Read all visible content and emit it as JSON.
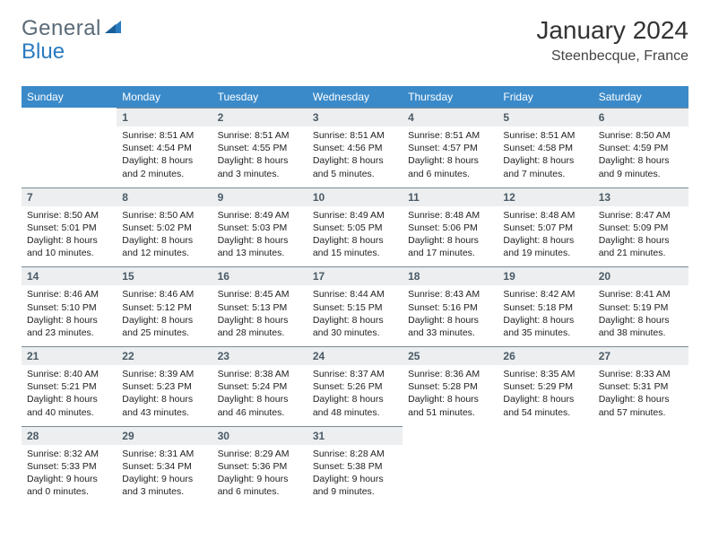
{
  "brand": {
    "part1": "General",
    "part2": "Blue"
  },
  "title": "January 2024",
  "location": "Steenbecque, France",
  "colors": {
    "header_bg": "#3a8ac9",
    "daynum_bg": "#eceeef",
    "daynum_border": "#7a8a96",
    "brand_gray": "#5a6a77",
    "brand_blue": "#2b7bbf"
  },
  "day_headers": [
    "Sunday",
    "Monday",
    "Tuesday",
    "Wednesday",
    "Thursday",
    "Friday",
    "Saturday"
  ],
  "weeks": [
    [
      null,
      {
        "n": "1",
        "sr": "8:51 AM",
        "ss": "4:54 PM",
        "dl": "8 hours and 2 minutes."
      },
      {
        "n": "2",
        "sr": "8:51 AM",
        "ss": "4:55 PM",
        "dl": "8 hours and 3 minutes."
      },
      {
        "n": "3",
        "sr": "8:51 AM",
        "ss": "4:56 PM",
        "dl": "8 hours and 5 minutes."
      },
      {
        "n": "4",
        "sr": "8:51 AM",
        "ss": "4:57 PM",
        "dl": "8 hours and 6 minutes."
      },
      {
        "n": "5",
        "sr": "8:51 AM",
        "ss": "4:58 PM",
        "dl": "8 hours and 7 minutes."
      },
      {
        "n": "6",
        "sr": "8:50 AM",
        "ss": "4:59 PM",
        "dl": "8 hours and 9 minutes."
      }
    ],
    [
      {
        "n": "7",
        "sr": "8:50 AM",
        "ss": "5:01 PM",
        "dl": "8 hours and 10 minutes."
      },
      {
        "n": "8",
        "sr": "8:50 AM",
        "ss": "5:02 PM",
        "dl": "8 hours and 12 minutes."
      },
      {
        "n": "9",
        "sr": "8:49 AM",
        "ss": "5:03 PM",
        "dl": "8 hours and 13 minutes."
      },
      {
        "n": "10",
        "sr": "8:49 AM",
        "ss": "5:05 PM",
        "dl": "8 hours and 15 minutes."
      },
      {
        "n": "11",
        "sr": "8:48 AM",
        "ss": "5:06 PM",
        "dl": "8 hours and 17 minutes."
      },
      {
        "n": "12",
        "sr": "8:48 AM",
        "ss": "5:07 PM",
        "dl": "8 hours and 19 minutes."
      },
      {
        "n": "13",
        "sr": "8:47 AM",
        "ss": "5:09 PM",
        "dl": "8 hours and 21 minutes."
      }
    ],
    [
      {
        "n": "14",
        "sr": "8:46 AM",
        "ss": "5:10 PM",
        "dl": "8 hours and 23 minutes."
      },
      {
        "n": "15",
        "sr": "8:46 AM",
        "ss": "5:12 PM",
        "dl": "8 hours and 25 minutes."
      },
      {
        "n": "16",
        "sr": "8:45 AM",
        "ss": "5:13 PM",
        "dl": "8 hours and 28 minutes."
      },
      {
        "n": "17",
        "sr": "8:44 AM",
        "ss": "5:15 PM",
        "dl": "8 hours and 30 minutes."
      },
      {
        "n": "18",
        "sr": "8:43 AM",
        "ss": "5:16 PM",
        "dl": "8 hours and 33 minutes."
      },
      {
        "n": "19",
        "sr": "8:42 AM",
        "ss": "5:18 PM",
        "dl": "8 hours and 35 minutes."
      },
      {
        "n": "20",
        "sr": "8:41 AM",
        "ss": "5:19 PM",
        "dl": "8 hours and 38 minutes."
      }
    ],
    [
      {
        "n": "21",
        "sr": "8:40 AM",
        "ss": "5:21 PM",
        "dl": "8 hours and 40 minutes."
      },
      {
        "n": "22",
        "sr": "8:39 AM",
        "ss": "5:23 PM",
        "dl": "8 hours and 43 minutes."
      },
      {
        "n": "23",
        "sr": "8:38 AM",
        "ss": "5:24 PM",
        "dl": "8 hours and 46 minutes."
      },
      {
        "n": "24",
        "sr": "8:37 AM",
        "ss": "5:26 PM",
        "dl": "8 hours and 48 minutes."
      },
      {
        "n": "25",
        "sr": "8:36 AM",
        "ss": "5:28 PM",
        "dl": "8 hours and 51 minutes."
      },
      {
        "n": "26",
        "sr": "8:35 AM",
        "ss": "5:29 PM",
        "dl": "8 hours and 54 minutes."
      },
      {
        "n": "27",
        "sr": "8:33 AM",
        "ss": "5:31 PM",
        "dl": "8 hours and 57 minutes."
      }
    ],
    [
      {
        "n": "28",
        "sr": "8:32 AM",
        "ss": "5:33 PM",
        "dl": "9 hours and 0 minutes."
      },
      {
        "n": "29",
        "sr": "8:31 AM",
        "ss": "5:34 PM",
        "dl": "9 hours and 3 minutes."
      },
      {
        "n": "30",
        "sr": "8:29 AM",
        "ss": "5:36 PM",
        "dl": "9 hours and 6 minutes."
      },
      {
        "n": "31",
        "sr": "8:28 AM",
        "ss": "5:38 PM",
        "dl": "9 hours and 9 minutes."
      },
      null,
      null,
      null
    ]
  ],
  "labels": {
    "sunrise": "Sunrise:",
    "sunset": "Sunset:",
    "daylight": "Daylight:"
  }
}
